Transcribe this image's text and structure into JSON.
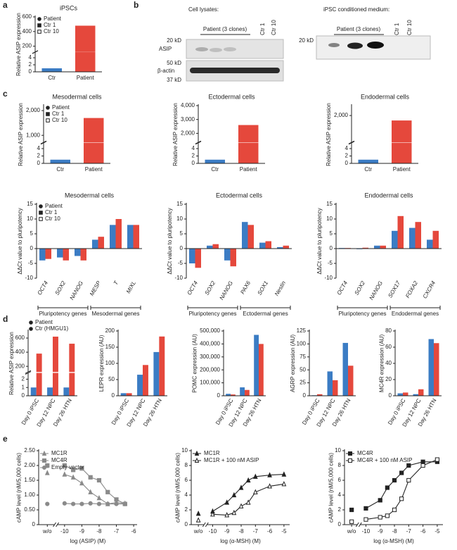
{
  "blots": {
    "letter": "b",
    "lysates": {
      "title": "Cell lysates:",
      "group": "Patient (3 clones)",
      "controls": [
        "Ctr 1",
        "Ctr 10"
      ],
      "markers": [
        "20 kD",
        "50 kD",
        "37 kD"
      ],
      "proteins": [
        "ASIP",
        "β-actin"
      ]
    },
    "medium": {
      "title": "iPSC conditioned medium:",
      "group": "Patient (3 clones)",
      "controls": [
        "Ctr 1",
        "Ctr 10"
      ],
      "markers": [
        "20 kD"
      ]
    }
  },
  "chart_data": [
    {
      "type": "bar",
      "letter": "a",
      "title": "iPSCs",
      "ylabel": "Relative ASIP expression",
      "categories": [
        "Ctr",
        "Patient"
      ],
      "values": [
        1,
        480
      ],
      "colors": [
        "#3b7cc4",
        "#e5483c"
      ],
      "ylim": [
        0,
        600
      ],
      "ybreak": [
        5,
        150
      ],
      "yticks": [
        0,
        2,
        4,
        200,
        400,
        600
      ],
      "legend": [
        "Patient",
        "Ctr 1",
        "Ctr 10"
      ],
      "legend_markers": [
        "filled-circle",
        "filled-square",
        "open-square"
      ]
    },
    {
      "type": "bar",
      "letter": "c",
      "title": "Mesodermal cells",
      "ylabel": "Relative ASIP expression",
      "categories": [
        "Ctr",
        "Patient"
      ],
      "values": [
        1,
        1700
      ],
      "colors": [
        "#3b7cc4",
        "#e5483c"
      ],
      "ylim": [
        0,
        2200
      ],
      "ybreak": [
        5,
        800
      ],
      "yticks": [
        0,
        2,
        4,
        {
          "value": 1000,
          "label": "1,000"
        },
        {
          "value": 2000,
          "label": "2,000"
        }
      ],
      "legend": [
        "Patient",
        "Ctr 1",
        "Ctr 10"
      ],
      "legend_markers": [
        "filled-circle",
        "filled-square",
        "open-square"
      ]
    },
    {
      "type": "bar",
      "title": "Ectodermal cells",
      "ylabel": "Relative ASIP expression",
      "categories": [
        "Ctr",
        "Patient"
      ],
      "values": [
        1,
        2600
      ],
      "colors": [
        "#3b7cc4",
        "#e5483c"
      ],
      "ylim": [
        0,
        4000
      ],
      "ybreak": [
        5,
        1500
      ],
      "yticks": [
        0,
        2,
        4,
        {
          "value": 2000,
          "label": "2,000"
        },
        {
          "value": 3000,
          "label": "3,000"
        },
        {
          "value": 4000,
          "label": "4,000"
        }
      ]
    },
    {
      "type": "bar",
      "title": "Endodermal cells",
      "ylabel": "Relative ASIP expression",
      "categories": [
        "Ctr",
        "Patient"
      ],
      "values": [
        1,
        1900
      ],
      "colors": [
        "#3b7cc4",
        "#e5483c"
      ],
      "ylim": [
        0,
        2200
      ],
      "ybreak": [
        5,
        1500
      ],
      "yticks": [
        0,
        2,
        4,
        {
          "value": 2000,
          "label": "2,000"
        }
      ]
    },
    {
      "type": "bar",
      "title": "Mesodermal cells",
      "ylabel": "ΔΔCt value to pluripotency",
      "categories": [
        "OCT4",
        "SOX2",
        "NANOG",
        "MESP",
        "T",
        "MIXL"
      ],
      "series": [
        {
          "color": "#3b7cc4",
          "values": [
            -4,
            -3,
            -2.5,
            3,
            8,
            8
          ]
        },
        {
          "color": "#e5483c",
          "values": [
            -3.5,
            -4,
            -4,
            4,
            10,
            8
          ]
        }
      ],
      "ylim": [
        -10,
        15
      ],
      "yticks": [
        -10,
        -5,
        0,
        5,
        10,
        15
      ],
      "groups": [
        {
          "label": "Pluripotency genes",
          "categories": [
            "OCT4",
            "SOX2",
            "NANOG"
          ]
        },
        {
          "label": "Mesodermal genes",
          "categories": [
            "MESP",
            "T",
            "MIXL"
          ]
        }
      ],
      "legend": [
        "Patient",
        "Ctr 1",
        "Ctr 10"
      ],
      "legend_markers": [
        "filled-circle",
        "filled-square",
        "open-square"
      ]
    },
    {
      "type": "bar",
      "title": "Ectodermal cells",
      "ylabel": "ΔΔCt value to pluripotency",
      "categories": [
        "OCT4",
        "SOX2",
        "NANOG",
        "PAX6",
        "SOX1",
        "Nestin"
      ],
      "series": [
        {
          "color": "#3b7cc4",
          "values": [
            -5,
            1,
            -4,
            9,
            2,
            0.5
          ]
        },
        {
          "color": "#e5483c",
          "values": [
            -6.5,
            1.5,
            -6,
            8,
            2.5,
            1
          ]
        }
      ],
      "ylim": [
        -10,
        15
      ],
      "yticks": [
        -10,
        -5,
        0,
        5,
        10,
        15
      ],
      "groups": [
        {
          "label": "Pluripotency genes",
          "categories": [
            "OCT4",
            "SOX2",
            "NANOG"
          ]
        },
        {
          "label": "Ectodermal genes",
          "categories": [
            "PAX6",
            "SOX1",
            "Nestin"
          ]
        }
      ]
    },
    {
      "type": "bar",
      "title": "Endodermal cells",
      "ylabel": "ΔΔCt value to pluripotency",
      "categories": [
        "OCT4",
        "SOX2",
        "NANOG",
        "SOX17",
        "FOXA2",
        "CXCR4"
      ],
      "series": [
        {
          "color": "#3b7cc4",
          "values": [
            0.2,
            -0.2,
            1,
            6,
            7,
            3
          ]
        },
        {
          "color": "#e5483c",
          "values": [
            0.2,
            0.3,
            1,
            11,
            9,
            6
          ]
        }
      ],
      "ylim": [
        -10,
        15
      ],
      "yticks": [
        -10,
        -5,
        0,
        5,
        10,
        15
      ],
      "groups": [
        {
          "label": "Pluripotency genes",
          "categories": [
            "OCT4",
            "SOX2",
            "NANOG"
          ]
        },
        {
          "label": "Endodermal genes",
          "categories": [
            "SOX17",
            "FOXA2",
            "CXCR4"
          ]
        }
      ]
    },
    {
      "type": "bar",
      "letter": "d",
      "ylabel": "Relative ASIP expression",
      "categories": [
        "Day 0 iPSC",
        "Day 12 NPC",
        "Day 26 HTN"
      ],
      "series": [
        {
          "color": "#3b7cc4",
          "values": [
            1,
            1,
            1
          ]
        },
        {
          "color": "#e5483c",
          "values": [
            380,
            620,
            520
          ]
        }
      ],
      "ylim": [
        0,
        700
      ],
      "ybreak": [
        2.5,
        150
      ],
      "yticks": [
        0,
        1,
        2,
        200,
        400,
        600
      ],
      "legend": [
        "Patient",
        "Ctr (HMGU1)"
      ],
      "legend_markers": [
        "filled-circle",
        "filled-circle"
      ]
    },
    {
      "type": "bar",
      "ylabel": "LEPR expression (AU)",
      "categories": [
        "Day 0 iPSC",
        "Day 12 NPC",
        "Day 26 HTN"
      ],
      "series": [
        {
          "color": "#3b7cc4",
          "values": [
            8,
            65,
            135
          ]
        },
        {
          "color": "#e5483c",
          "values": [
            8,
            95,
            183
          ]
        }
      ],
      "ylim": [
        0,
        200
      ],
      "yticks": [
        0,
        50,
        100,
        150,
        200
      ]
    },
    {
      "type": "bar",
      "ylabel": "POMC expression (AU)",
      "categories": [
        "Day 0 iPSC",
        "Day 12 NPC",
        "Day 26 HTN"
      ],
      "series": [
        {
          "color": "#3b7cc4",
          "values": [
            15000,
            65000,
            470000
          ]
        },
        {
          "color": "#e5483c",
          "values": [
            10000,
            45000,
            400000
          ]
        }
      ],
      "ylim": [
        0,
        500000
      ],
      "yticks": [
        0,
        {
          "value": 100000,
          "label": "100,000"
        },
        {
          "value": 200000,
          "label": "200,000"
        },
        {
          "value": 300000,
          "label": "300,000"
        },
        {
          "value": 400000,
          "label": "400,000"
        },
        {
          "value": 500000,
          "label": "500,000"
        }
      ]
    },
    {
      "type": "bar",
      "ylabel": "AGRP expression (AU)",
      "categories": [
        "Day 0 iPSC",
        "Day 12 NPC",
        "Day 26 HTN"
      ],
      "series": [
        {
          "color": "#3b7cc4",
          "values": [
            1,
            47,
            102
          ]
        },
        {
          "color": "#e5483c",
          "values": [
            3,
            30,
            58
          ]
        }
      ],
      "ylim": [
        0,
        125
      ],
      "yticks": [
        0,
        25,
        50,
        75,
        100,
        125
      ]
    },
    {
      "type": "bar",
      "ylabel": "MC4R expression (AU)",
      "categories": [
        "Day 0 iPSC",
        "Day 12 NPC",
        "Day 26 HTN"
      ],
      "series": [
        {
          "color": "#3b7cc4",
          "values": [
            3,
            2,
            70
          ]
        },
        {
          "color": "#e5483c",
          "values": [
            4,
            8,
            65
          ]
        }
      ],
      "ylim": [
        0,
        80
      ],
      "yticks": [
        0,
        20,
        40,
        60,
        80
      ]
    },
    {
      "type": "line",
      "letter": "e",
      "ylabel": "cAMP level (nM/5,000 cells)",
      "xlabel": "log (ASIP) (M)",
      "x": [
        -11,
        -10,
        -9.5,
        -9,
        -8.5,
        -8,
        -7.5,
        -7,
        -6.5
      ],
      "xlim": [
        -11.5,
        -5.8
      ],
      "xbreak": -10.5,
      "xticks": [
        {
          "value": -11,
          "label": "w/o"
        },
        -10,
        -9,
        -8,
        -7,
        -6
      ],
      "ylim": [
        0,
        2.5
      ],
      "yticks": [
        0,
        {
          "value": 0.5,
          "label": "0.50"
        },
        {
          "value": 1,
          "label": "1.00"
        },
        {
          "value": 1.5,
          "label": "1.50"
        },
        {
          "value": 2,
          "label": "2.00"
        },
        {
          "value": 2.5,
          "label": "2.50"
        }
      ],
      "legend_loc": "upper-left",
      "series": [
        {
          "name": "MC1R",
          "color": "#8a8a8a",
          "marker": "triangle",
          "filled": true,
          "values": [
            1.75,
            1.7,
            1.6,
            1.4,
            1.1,
            0.9,
            0.7,
            0.75,
            0.72
          ]
        },
        {
          "name": "MC4R",
          "color": "#8a8a8a",
          "marker": "square",
          "filled": true,
          "values": [
            2.0,
            2.0,
            1.85,
            1.9,
            1.6,
            1.5,
            1.1,
            0.85,
            0.7
          ]
        },
        {
          "name": "Empty vector",
          "color": "#8a8a8a",
          "marker": "circle",
          "filled": true,
          "values": [
            0.7,
            0.72,
            0.7,
            0.7,
            0.72,
            0.7,
            0.7,
            0.7,
            0.7
          ]
        }
      ]
    },
    {
      "type": "line",
      "ylabel": "cAMP level (nM/5,000 cells)",
      "xlabel": "log (α-MSH) (M)",
      "x": [
        -11,
        -10,
        -9,
        -8.5,
        -8,
        -7.5,
        -7,
        -6,
        -5
      ],
      "xlim": [
        -11.5,
        -4.6
      ],
      "xbreak": -10.5,
      "xticks": [
        {
          "value": -11,
          "label": "w/o"
        },
        -10,
        -9,
        -8,
        -7,
        -6,
        -5
      ],
      "ylim": [
        0,
        10
      ],
      "yticks": [
        0,
        2,
        4,
        6,
        8,
        10
      ],
      "legend_loc": "upper-left",
      "series": [
        {
          "name": "MC1R",
          "color": "#222222",
          "marker": "triangle",
          "filled": true,
          "values": [
            1.5,
            1.8,
            3.0,
            4.0,
            5.0,
            6.0,
            6.5,
            6.7,
            6.8
          ]
        },
        {
          "name": "MC1R + 100 nM ASIP",
          "color": "#222222",
          "marker": "triangle",
          "filled": false,
          "values": [
            0.6,
            1.4,
            1.3,
            1.6,
            2.5,
            3.0,
            4.4,
            5.2,
            5.5
          ]
        }
      ]
    },
    {
      "type": "line",
      "ylabel": "cAMP level (nM/5,000 cells)",
      "xlabel": "log (α-MSH) (M)",
      "x": [
        -11,
        -10,
        -9,
        -8.5,
        -8,
        -7.5,
        -7,
        -6,
        -5
      ],
      "xlim": [
        -11.5,
        -4.6
      ],
      "xbreak": -10.5,
      "xticks": [
        {
          "value": -11,
          "label": "w/o"
        },
        -10,
        -9,
        -8,
        -7,
        -6,
        -5
      ],
      "ylim": [
        0,
        10
      ],
      "yticks": [
        0,
        2,
        4,
        6,
        8,
        10
      ],
      "legend_loc": "upper-left",
      "series": [
        {
          "name": "MC4R",
          "color": "#222222",
          "marker": "square",
          "filled": true,
          "values": [
            2.0,
            2.2,
            3.3,
            5.0,
            6.0,
            7.0,
            8.0,
            8.5,
            8.5
          ]
        },
        {
          "name": "MC4R + 100 nM ASIP",
          "color": "#222222",
          "marker": "square",
          "filled": false,
          "values": [
            0.4,
            0.7,
            1.0,
            1.2,
            2.0,
            3.5,
            6.0,
            8.0,
            8.8
          ]
        }
      ]
    }
  ]
}
